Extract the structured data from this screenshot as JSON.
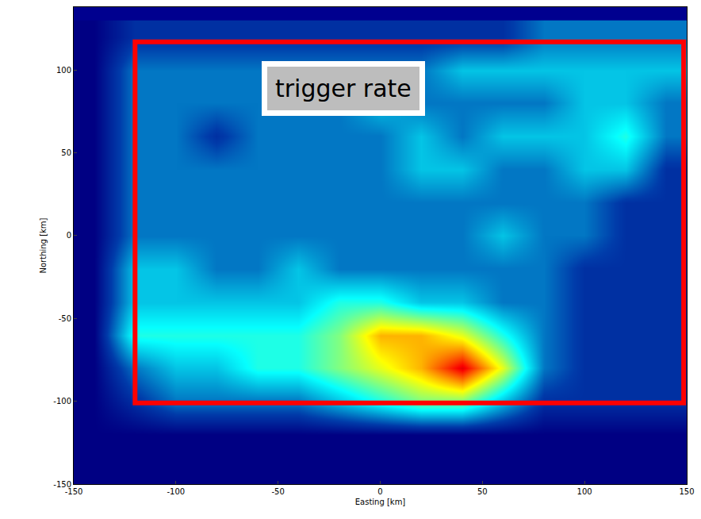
{
  "chart_data": {
    "type": "heatmap",
    "xlabel": "Easting [km]",
    "ylabel": "Northing [km]",
    "annotations": [
      "trigger rate"
    ],
    "xlim": [
      -150,
      150
    ],
    "ylim": [
      -150,
      138
    ],
    "xticks": [
      -150,
      -100,
      -50,
      0,
      50,
      100,
      150
    ],
    "yticks": [
      -150,
      -100,
      -50,
      0,
      50,
      100
    ],
    "zlim": [
      0,
      10
    ],
    "x": [
      -140,
      -120,
      -100,
      -80,
      -60,
      -40,
      -20,
      0,
      20,
      40,
      60,
      80,
      100,
      120,
      140
    ],
    "y": [
      -140,
      -120,
      -100,
      -80,
      -60,
      -40,
      -20,
      0,
      20,
      40,
      60,
      80,
      100,
      120
    ],
    "z": [
      [
        0,
        0,
        0,
        0,
        0,
        0,
        0,
        0,
        0,
        0,
        0,
        0,
        0,
        0,
        0
      ],
      [
        0,
        0,
        0,
        0,
        0,
        0,
        0,
        0,
        0,
        0,
        0,
        0,
        0,
        0,
        0
      ],
      [
        0,
        1,
        2,
        2,
        2,
        2,
        3,
        4,
        5,
        5,
        3,
        1,
        1,
        1,
        1
      ],
      [
        0,
        2,
        3,
        3,
        4,
        4,
        5,
        6,
        7,
        9,
        6,
        2,
        1,
        1,
        1
      ],
      [
        0,
        4,
        4,
        4,
        4,
        4,
        5,
        7,
        7,
        6,
        4,
        2,
        1,
        1,
        1
      ],
      [
        0,
        3,
        3,
        3,
        3,
        3,
        4,
        4,
        3,
        3,
        2,
        2,
        1,
        1,
        1
      ],
      [
        0,
        3,
        3,
        2,
        2,
        3,
        2,
        2,
        2,
        2,
        2,
        2,
        1,
        1,
        1
      ],
      [
        0,
        2,
        2,
        2,
        2,
        2,
        2,
        2,
        2,
        2,
        3,
        2,
        2,
        1,
        1
      ],
      [
        0,
        2,
        2,
        2,
        2,
        2,
        2,
        2,
        2,
        2,
        2,
        2,
        2,
        1,
        1
      ],
      [
        0,
        2,
        2,
        2,
        2,
        2,
        2,
        2,
        3,
        3,
        2,
        2,
        3,
        3,
        1
      ],
      [
        0,
        2,
        2,
        1,
        2,
        2,
        2,
        2,
        3,
        2,
        3,
        3,
        3,
        4,
        2
      ],
      [
        0,
        2,
        2,
        2,
        2,
        2,
        2,
        3,
        2,
        2,
        2,
        2,
        3,
        3,
        2
      ],
      [
        0,
        2,
        2,
        2,
        2,
        2,
        2,
        2,
        2,
        3,
        3,
        3,
        3,
        3,
        3
      ],
      [
        0,
        1,
        1,
        1,
        1,
        1,
        1,
        1,
        1,
        1,
        1,
        2,
        2,
        2,
        2
      ]
    ]
  }
}
